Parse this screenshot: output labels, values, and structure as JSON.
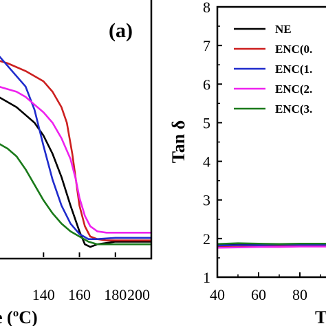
{
  "chart_data": [
    {
      "type": "line",
      "panel_label": "(a)",
      "xlabel": "e (ºC)",
      "ylabel": "",
      "xlim": [
        115,
        200
      ],
      "ylim": [
        0,
        1
      ],
      "x_ticks": [
        "140",
        "160",
        "180",
        "200"
      ],
      "x_tick_values": [
        140,
        160,
        180,
        200
      ],
      "legend": "none",
      "series": [
        {
          "color": "#000000",
          "x": [
            115,
            120,
            125,
            130,
            135,
            140,
            145,
            150,
            155,
            160,
            163,
            166,
            170,
            175,
            180,
            190,
            200
          ],
          "y": [
            0.62,
            0.6,
            0.58,
            0.55,
            0.52,
            0.47,
            0.4,
            0.31,
            0.2,
            0.1,
            0.05,
            0.04,
            0.05,
            0.055,
            0.06,
            0.06,
            0.06
          ]
        },
        {
          "color": "#cc1f1f",
          "x": [
            115,
            120,
            130,
            140,
            145,
            150,
            153,
            156,
            158,
            160,
            163,
            166,
            170,
            175,
            180,
            190,
            200
          ],
          "y": [
            0.76,
            0.75,
            0.72,
            0.68,
            0.64,
            0.58,
            0.52,
            0.4,
            0.3,
            0.2,
            0.12,
            0.08,
            0.07,
            0.065,
            0.065,
            0.065,
            0.065
          ]
        },
        {
          "color": "#1f2bcc",
          "x": [
            115,
            120,
            125,
            130,
            135,
            140,
            145,
            150,
            155,
            160,
            165,
            170,
            180,
            190,
            200
          ],
          "y": [
            0.78,
            0.74,
            0.7,
            0.66,
            0.57,
            0.43,
            0.3,
            0.2,
            0.13,
            0.09,
            0.07,
            0.07,
            0.075,
            0.075,
            0.075
          ]
        },
        {
          "color": "#ee22ee",
          "x": [
            115,
            120,
            125,
            130,
            135,
            140,
            145,
            150,
            155,
            158,
            160,
            163,
            166,
            170,
            175,
            180,
            190,
            200
          ],
          "y": [
            0.66,
            0.65,
            0.64,
            0.62,
            0.59,
            0.56,
            0.52,
            0.46,
            0.38,
            0.3,
            0.23,
            0.16,
            0.12,
            0.1,
            0.095,
            0.095,
            0.095,
            0.095
          ]
        },
        {
          "color": "#1a7a1a",
          "x": [
            115,
            120,
            125,
            130,
            135,
            140,
            145,
            150,
            155,
            160,
            165,
            170,
            180,
            190,
            200
          ],
          "y": [
            0.44,
            0.42,
            0.39,
            0.34,
            0.28,
            0.22,
            0.17,
            0.13,
            0.1,
            0.08,
            0.06,
            0.05,
            0.05,
            0.05,
            0.05
          ]
        }
      ]
    },
    {
      "type": "line",
      "xlabel": "T",
      "ylabel": "Tan δ",
      "xlim": [
        40,
        100
      ],
      "ylim": [
        1,
        8
      ],
      "x_ticks": [
        "40",
        "60",
        "80"
      ],
      "x_tick_values": [
        40,
        60,
        80
      ],
      "y_ticks": [
        "1",
        "2",
        "3",
        "4",
        "5",
        "6",
        "7",
        "8"
      ],
      "y_tick_values": [
        1,
        2,
        3,
        4,
        5,
        6,
        7,
        8
      ],
      "legend": "top-left",
      "series": [
        {
          "name": "NE",
          "color": "#000000",
          "x": [
            40,
            50,
            60,
            70,
            80,
            90,
            100
          ],
          "y": [
            1.83,
            1.84,
            1.84,
            1.85,
            1.86,
            1.86,
            1.86
          ]
        },
        {
          "name": "ENC(0.",
          "color": "#cc1f1f",
          "x": [
            40,
            50,
            60,
            70,
            80,
            90,
            100
          ],
          "y": [
            1.8,
            1.81,
            1.81,
            1.82,
            1.82,
            1.83,
            1.83
          ]
        },
        {
          "name": "ENC(1.",
          "color": "#1f2bcc",
          "x": [
            40,
            50,
            60,
            70,
            80,
            90,
            100
          ],
          "y": [
            1.82,
            1.83,
            1.83,
            1.84,
            1.84,
            1.84,
            1.84
          ]
        },
        {
          "name": "ENC(2.",
          "color": "#ee22ee",
          "x": [
            40,
            50,
            60,
            70,
            80,
            90,
            100
          ],
          "y": [
            1.76,
            1.77,
            1.78,
            1.78,
            1.79,
            1.79,
            1.79
          ]
        },
        {
          "name": "ENC(3.",
          "color": "#1a7a1a",
          "x": [
            40,
            50,
            60,
            70,
            80,
            90,
            100
          ],
          "y": [
            1.86,
            1.88,
            1.87,
            1.86,
            1.87,
            1.87,
            1.87
          ]
        }
      ]
    }
  ]
}
